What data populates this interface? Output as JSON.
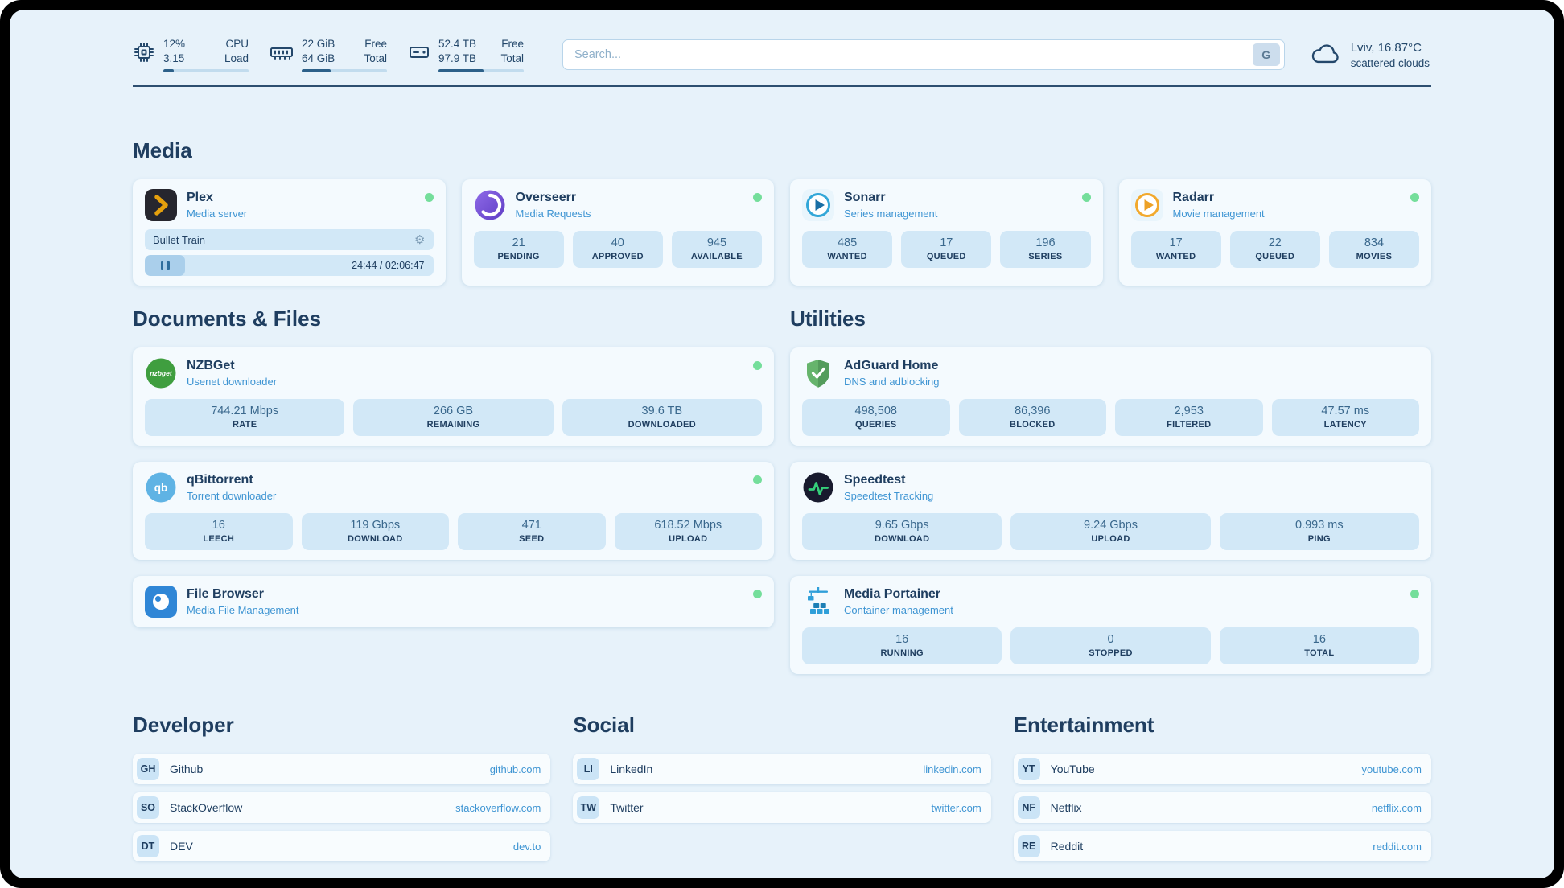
{
  "topbar": {
    "cpu": {
      "line1": "12%",
      "line2": "3.15",
      "label1": "CPU",
      "label2": "Load",
      "progress": 12
    },
    "memory": {
      "line1": "22 GiB",
      "line2": "64 GiB",
      "label1": "Free",
      "label2": "Total",
      "progress": 34
    },
    "disk": {
      "line1": "52.4 TB",
      "line2": "97.9 TB",
      "label1": "Free",
      "label2": "Total",
      "progress": 53
    },
    "search": {
      "placeholder": "Search...",
      "button": "G"
    },
    "weather": {
      "location": "Lviv, 16.87°C",
      "description": "scattered clouds"
    }
  },
  "icons": {
    "gear": "⚙"
  },
  "colors": {
    "accent_blue": "#3f95d3",
    "navy": "#1f3e60",
    "online_green": "#74de9b",
    "stat_bg": "#d2e8f7",
    "page_bg": "#e7f2fa"
  },
  "sections": {
    "media": {
      "title": "Media",
      "cards": [
        {
          "name": "Plex",
          "subtitle": "Media server",
          "online": true,
          "player": {
            "title": "Bullet Train",
            "time": "24:44 / 02:06:47"
          }
        },
        {
          "name": "Overseerr",
          "subtitle": "Media Requests",
          "online": true,
          "stats": [
            {
              "value": "21",
              "label": "PENDING"
            },
            {
              "value": "40",
              "label": "APPROVED"
            },
            {
              "value": "945",
              "label": "AVAILABLE"
            }
          ]
        },
        {
          "name": "Sonarr",
          "subtitle": "Series management",
          "online": true,
          "stats": [
            {
              "value": "485",
              "label": "WANTED"
            },
            {
              "value": "17",
              "label": "QUEUED"
            },
            {
              "value": "196",
              "label": "SERIES"
            }
          ]
        },
        {
          "name": "Radarr",
          "subtitle": "Movie management",
          "online": true,
          "stats": [
            {
              "value": "17",
              "label": "WANTED"
            },
            {
              "value": "22",
              "label": "QUEUED"
            },
            {
              "value": "834",
              "label": "MOVIES"
            }
          ]
        }
      ]
    },
    "documents": {
      "title": "Documents & Files",
      "cards": [
        {
          "name": "NZBGet",
          "subtitle": "Usenet downloader",
          "online": true,
          "icon_text": "nzbget",
          "stats": [
            {
              "value": "744.21 Mbps",
              "label": "RATE"
            },
            {
              "value": "266 GB",
              "label": "REMAINING"
            },
            {
              "value": "39.6 TB",
              "label": "DOWNLOADED"
            }
          ]
        },
        {
          "name": "qBittorrent",
          "subtitle": "Torrent downloader",
          "online": true,
          "icon_text": "qb",
          "stats": [
            {
              "value": "16",
              "label": "LEECH"
            },
            {
              "value": "119 Gbps",
              "label": "DOWNLOAD"
            },
            {
              "value": "471",
              "label": "SEED"
            },
            {
              "value": "618.52 Mbps",
              "label": "UPLOAD"
            }
          ]
        },
        {
          "name": "File Browser",
          "subtitle": "Media File Management",
          "online": true
        }
      ]
    },
    "utilities": {
      "title": "Utilities",
      "cards": [
        {
          "name": "AdGuard Home",
          "subtitle": "DNS and adblocking",
          "stats": [
            {
              "value": "498,508",
              "label": "QUERIES"
            },
            {
              "value": "86,396",
              "label": "BLOCKED"
            },
            {
              "value": "2,953",
              "label": "FILTERED"
            },
            {
              "value": "47.57 ms",
              "label": "LATENCY"
            }
          ]
        },
        {
          "name": "Speedtest",
          "subtitle": "Speedtest Tracking",
          "stats": [
            {
              "value": "9.65 Gbps",
              "label": "DOWNLOAD"
            },
            {
              "value": "9.24 Gbps",
              "label": "UPLOAD"
            },
            {
              "value": "0.993 ms",
              "label": "PING"
            }
          ]
        },
        {
          "name": "Media Portainer",
          "subtitle": "Container management",
          "online": true,
          "stats": [
            {
              "value": "16",
              "label": "RUNNING"
            },
            {
              "value": "0",
              "label": "STOPPED"
            },
            {
              "value": "16",
              "label": "TOTAL"
            }
          ]
        }
      ]
    },
    "bookmarks": [
      {
        "title": "Developer",
        "links": [
          {
            "abbr": "GH",
            "name": "Github",
            "url": "github.com"
          },
          {
            "abbr": "SO",
            "name": "StackOverflow",
            "url": "stackoverflow.com"
          },
          {
            "abbr": "DT",
            "name": "DEV",
            "url": "dev.to"
          }
        ]
      },
      {
        "title": "Social",
        "links": [
          {
            "abbr": "LI",
            "name": "LinkedIn",
            "url": "linkedin.com"
          },
          {
            "abbr": "TW",
            "name": "Twitter",
            "url": "twitter.com"
          }
        ]
      },
      {
        "title": "Entertainment",
        "links": [
          {
            "abbr": "YT",
            "name": "YouTube",
            "url": "youtube.com"
          },
          {
            "abbr": "NF",
            "name": "Netflix",
            "url": "netflix.com"
          },
          {
            "abbr": "RE",
            "name": "Reddit",
            "url": "reddit.com"
          }
        ]
      }
    ]
  }
}
